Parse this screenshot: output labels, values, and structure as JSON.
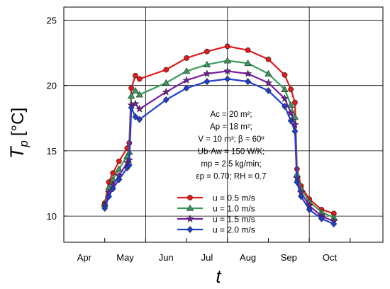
{
  "chart_data": {
    "type": "line",
    "xlabel": "t",
    "ylabel_main": "T",
    "ylabel_sub": "p",
    "ylabel_unit": "[°C]",
    "ylim": [
      8,
      26
    ],
    "yticks": [
      10,
      15,
      20,
      25
    ],
    "grid": true,
    "xgrid_months": [
      3,
      5,
      7,
      9
    ],
    "xlim": [
      3,
      10.8
    ],
    "xtick_labels": [
      {
        "label": "Apr",
        "pos": 3.5
      },
      {
        "label": "May",
        "pos": 4.5
      },
      {
        "label": "Jun",
        "pos": 5.5
      },
      {
        "label": "Jul",
        "pos": 6.5
      },
      {
        "label": "Aug",
        "pos": 7.5
      },
      {
        "label": "Sep",
        "pos": 8.5
      },
      {
        "label": "Oct",
        "pos": 9.5
      }
    ],
    "annotations": [
      "Ac = 20 m²;",
      "Ap = 18 m²;",
      "V = 10 m³; β = 60º",
      "Ub·Aw = 150 W/K;",
      "mp = 2.5 kg/min;",
      "εp = 0.70; RH = 0.7"
    ],
    "series": [
      {
        "name": "u = 0.5 m/s",
        "color": "#e31a1c",
        "marker": "circle",
        "points": [
          [
            4.0,
            11.0
          ],
          [
            4.1,
            12.6
          ],
          [
            4.2,
            13.3
          ],
          [
            4.35,
            14.2
          ],
          [
            4.55,
            15.2
          ],
          [
            4.6,
            15.6
          ],
          [
            4.65,
            19.8
          ],
          [
            4.75,
            20.75
          ],
          [
            4.85,
            20.5
          ],
          [
            5.5,
            21.2
          ],
          [
            6.0,
            22.1
          ],
          [
            6.5,
            22.6
          ],
          [
            7.0,
            23.0
          ],
          [
            7.5,
            22.7
          ],
          [
            8.0,
            22.0
          ],
          [
            8.4,
            20.8
          ],
          [
            8.55,
            19.7
          ],
          [
            8.65,
            18.7
          ],
          [
            8.7,
            13.6
          ],
          [
            8.8,
            12.3
          ],
          [
            9.0,
            11.3
          ],
          [
            9.3,
            10.5
          ],
          [
            9.6,
            10.2
          ]
        ]
      },
      {
        "name": "u = 1.0 m/s",
        "color": "#3a9a5c",
        "marker": "triangle",
        "points": [
          [
            4.0,
            10.9
          ],
          [
            4.1,
            12.2
          ],
          [
            4.2,
            12.8
          ],
          [
            4.35,
            13.6
          ],
          [
            4.55,
            14.6
          ],
          [
            4.6,
            14.9
          ],
          [
            4.65,
            19.2
          ],
          [
            4.75,
            19.6
          ],
          [
            4.85,
            19.3
          ],
          [
            5.5,
            20.2
          ],
          [
            6.0,
            21.1
          ],
          [
            6.5,
            21.6
          ],
          [
            7.0,
            21.9
          ],
          [
            7.5,
            21.7
          ],
          [
            8.0,
            20.9
          ],
          [
            8.4,
            19.7
          ],
          [
            8.55,
            18.5
          ],
          [
            8.65,
            17.6
          ],
          [
            8.7,
            13.2
          ],
          [
            8.8,
            12.1
          ],
          [
            9.0,
            11.1
          ],
          [
            9.3,
            10.3
          ],
          [
            9.6,
            9.9
          ]
        ]
      },
      {
        "name": "u = 1.5 m/s",
        "color": "#7a1fa2",
        "marker": "star",
        "points": [
          [
            4.0,
            10.8
          ],
          [
            4.1,
            11.8
          ],
          [
            4.2,
            12.4
          ],
          [
            4.35,
            13.1
          ],
          [
            4.55,
            14.1
          ],
          [
            4.6,
            14.3
          ],
          [
            4.65,
            18.5
          ],
          [
            4.75,
            18.6
          ],
          [
            4.85,
            18.2
          ],
          [
            5.5,
            19.5
          ],
          [
            6.0,
            20.4
          ],
          [
            6.5,
            20.9
          ],
          [
            7.0,
            21.1
          ],
          [
            7.5,
            20.9
          ],
          [
            8.0,
            20.2
          ],
          [
            8.4,
            19.0
          ],
          [
            8.55,
            17.9
          ],
          [
            8.65,
            17.0
          ],
          [
            8.7,
            12.9
          ],
          [
            8.8,
            11.8
          ],
          [
            9.0,
            10.8
          ],
          [
            9.3,
            10.0
          ],
          [
            9.6,
            9.6
          ]
        ]
      },
      {
        "name": "u = 2.0 m/s",
        "color": "#1f3fd0",
        "marker": "diamond",
        "points": [
          [
            4.0,
            10.6
          ],
          [
            4.1,
            11.5
          ],
          [
            4.2,
            12.1
          ],
          [
            4.35,
            12.8
          ],
          [
            4.55,
            13.7
          ],
          [
            4.6,
            13.9
          ],
          [
            4.65,
            18.3
          ],
          [
            4.75,
            17.6
          ],
          [
            4.85,
            17.4
          ],
          [
            5.5,
            18.9
          ],
          [
            6.0,
            19.8
          ],
          [
            6.5,
            20.3
          ],
          [
            7.0,
            20.5
          ],
          [
            7.5,
            20.3
          ],
          [
            8.0,
            19.6
          ],
          [
            8.4,
            18.4
          ],
          [
            8.55,
            17.3
          ],
          [
            8.65,
            16.5
          ],
          [
            8.7,
            12.6
          ],
          [
            8.8,
            11.5
          ],
          [
            9.0,
            10.5
          ],
          [
            9.3,
            9.8
          ],
          [
            9.6,
            9.4
          ]
        ]
      }
    ]
  }
}
